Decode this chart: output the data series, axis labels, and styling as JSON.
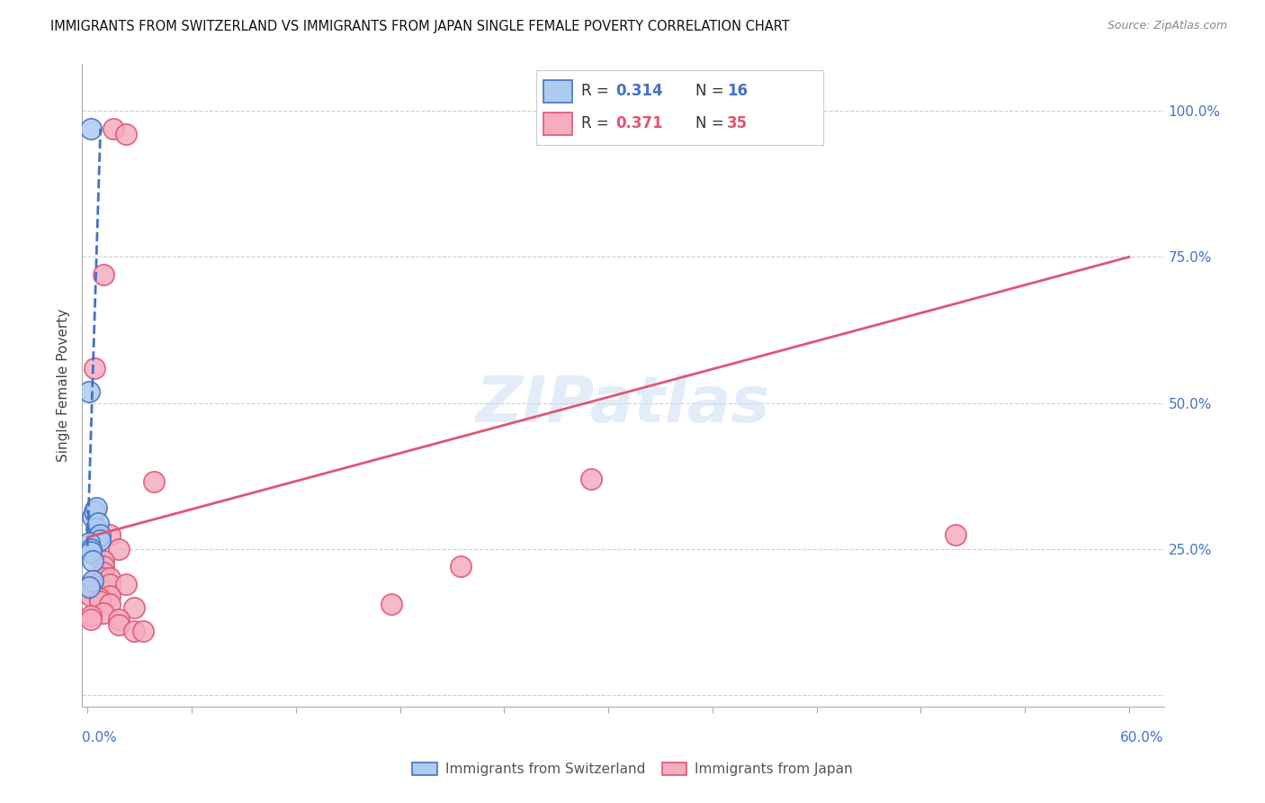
{
  "title": "IMMIGRANTS FROM SWITZERLAND VS IMMIGRANTS FROM JAPAN SINGLE FEMALE POVERTY CORRELATION CHART",
  "source": "Source: ZipAtlas.com",
  "ylabel": "Single Female Poverty",
  "y_ticks": [
    0.0,
    0.25,
    0.5,
    0.75,
    1.0
  ],
  "y_tick_labels": [
    "",
    "25.0%",
    "50.0%",
    "75.0%",
    "100.0%"
  ],
  "xlim": [
    -0.003,
    0.62
  ],
  "ylim": [
    -0.02,
    1.08
  ],
  "r1": "0.314",
  "n1": "16",
  "r2": "0.371",
  "n2": "35",
  "watermark": "ZIPatlas",
  "swiss_color": "#aecbf0",
  "japan_color": "#f5adc0",
  "swiss_edge_color": "#4472c4",
  "japan_edge_color": "#e05575",
  "swiss_trend_color": "#4472c4",
  "japan_trend_color": "#e05575",
  "swiss_scatter_x": [
    0.002,
    0.001,
    0.003,
    0.004,
    0.005,
    0.005,
    0.006,
    0.006,
    0.007,
    0.007,
    0.001,
    0.002,
    0.002,
    0.003,
    0.003,
    0.001
  ],
  "swiss_scatter_y": [
    0.97,
    0.52,
    0.305,
    0.315,
    0.32,
    0.285,
    0.295,
    0.27,
    0.275,
    0.265,
    0.26,
    0.25,
    0.245,
    0.23,
    0.195,
    0.185
  ],
  "japan_scatter_x": [
    0.015,
    0.009,
    0.022,
    0.004,
    0.038,
    0.29,
    0.5,
    0.013,
    0.004,
    0.018,
    0.004,
    0.009,
    0.009,
    0.009,
    0.009,
    0.013,
    0.013,
    0.022,
    0.002,
    0.002,
    0.002,
    0.013,
    0.007,
    0.007,
    0.013,
    0.027,
    0.009,
    0.002,
    0.002,
    0.018,
    0.018,
    0.027,
    0.032,
    0.175,
    0.215
  ],
  "japan_scatter_y": [
    0.97,
    0.72,
    0.96,
    0.56,
    0.365,
    0.37,
    0.275,
    0.275,
    0.26,
    0.25,
    0.24,
    0.23,
    0.22,
    0.21,
    0.2,
    0.2,
    0.19,
    0.19,
    0.19,
    0.18,
    0.17,
    0.17,
    0.165,
    0.16,
    0.155,
    0.15,
    0.14,
    0.135,
    0.13,
    0.13,
    0.12,
    0.11,
    0.11,
    0.155,
    0.22
  ],
  "swiss_trend_x": [
    0.0,
    0.0075
  ],
  "swiss_trend_y": [
    0.255,
    0.97
  ],
  "japan_trend_x": [
    0.0,
    0.6
  ],
  "japan_trend_y": [
    0.27,
    0.75
  ],
  "legend_swiss_label": "Immigrants from Switzerland",
  "legend_japan_label": "Immigrants from Japan"
}
